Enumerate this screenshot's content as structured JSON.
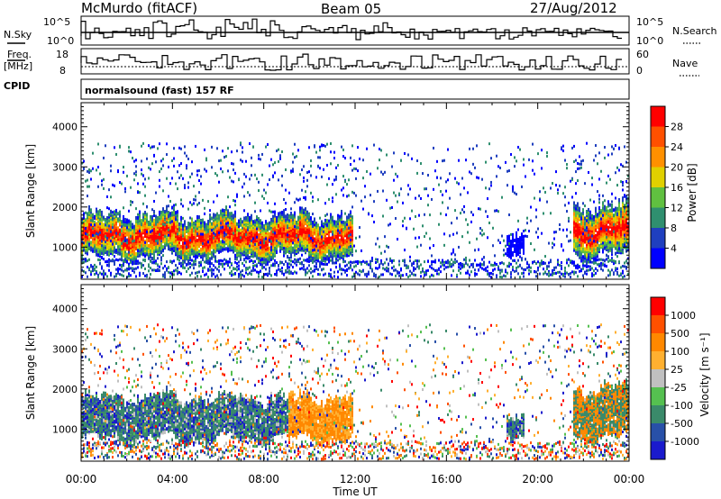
{
  "header": {
    "title": "McMurdo (fitACF)",
    "beam": "Beam 05",
    "date": "27/Aug/2012"
  },
  "strip1": {
    "left_label": "N.Sky",
    "right_label": "N.Search",
    "left_ticks": [
      "10^5",
      "10^0"
    ],
    "right_ticks": [
      "10^5",
      "10^0"
    ]
  },
  "strip2": {
    "left_label_1": "Freq.",
    "left_label_2": "[MHz]",
    "right_label": "Nave",
    "left_ticks": [
      "18",
      "8"
    ],
    "right_ticks": [
      "60",
      "0"
    ]
  },
  "cpid": {
    "label": "CPID",
    "text": "normalsound (fast) 157 RF"
  },
  "colors": {
    "power": [
      "#0000ff",
      "#1f3fbf",
      "#2f8f6f",
      "#60c040",
      "#e0d000",
      "#ff9000",
      "#ff5000",
      "#ff0000"
    ],
    "velocity": [
      "#1a1acd",
      "#2850a8",
      "#3a8a6a",
      "#55c050",
      "#c0c0c0",
      "#ffb030",
      "#ff8800",
      "#ff5000",
      "#ff0000"
    ]
  },
  "chart_data": [
    {
      "type": "heatmap",
      "name": "power",
      "ylabel": "Slant Range [km]",
      "yticks": [
        "1000",
        "2000",
        "3000",
        "4000"
      ],
      "ylim": [
        200,
        4600
      ],
      "xlim": [
        0,
        24
      ],
      "colorbar": {
        "label": "Power [dB]",
        "ticks": [
          "4",
          "8",
          "12",
          "16",
          "20",
          "24",
          "28"
        ]
      }
    },
    {
      "type": "heatmap",
      "name": "velocity",
      "ylabel": "Slant Range [km]",
      "yticks": [
        "1000",
        "2000",
        "3000",
        "4000"
      ],
      "ylim": [
        200,
        4600
      ],
      "xlim": [
        0,
        24
      ],
      "xlabel": "Time UT",
      "xticks": [
        "00:00",
        "04:00",
        "08:00",
        "12:00",
        "16:00",
        "20:00",
        "00:00"
      ],
      "colorbar": {
        "label": "Velocity [m s⁻¹]",
        "ticks": [
          "1000",
          "500",
          "100",
          "25",
          "-25",
          "-100",
          "-500",
          "-1000"
        ]
      }
    }
  ]
}
